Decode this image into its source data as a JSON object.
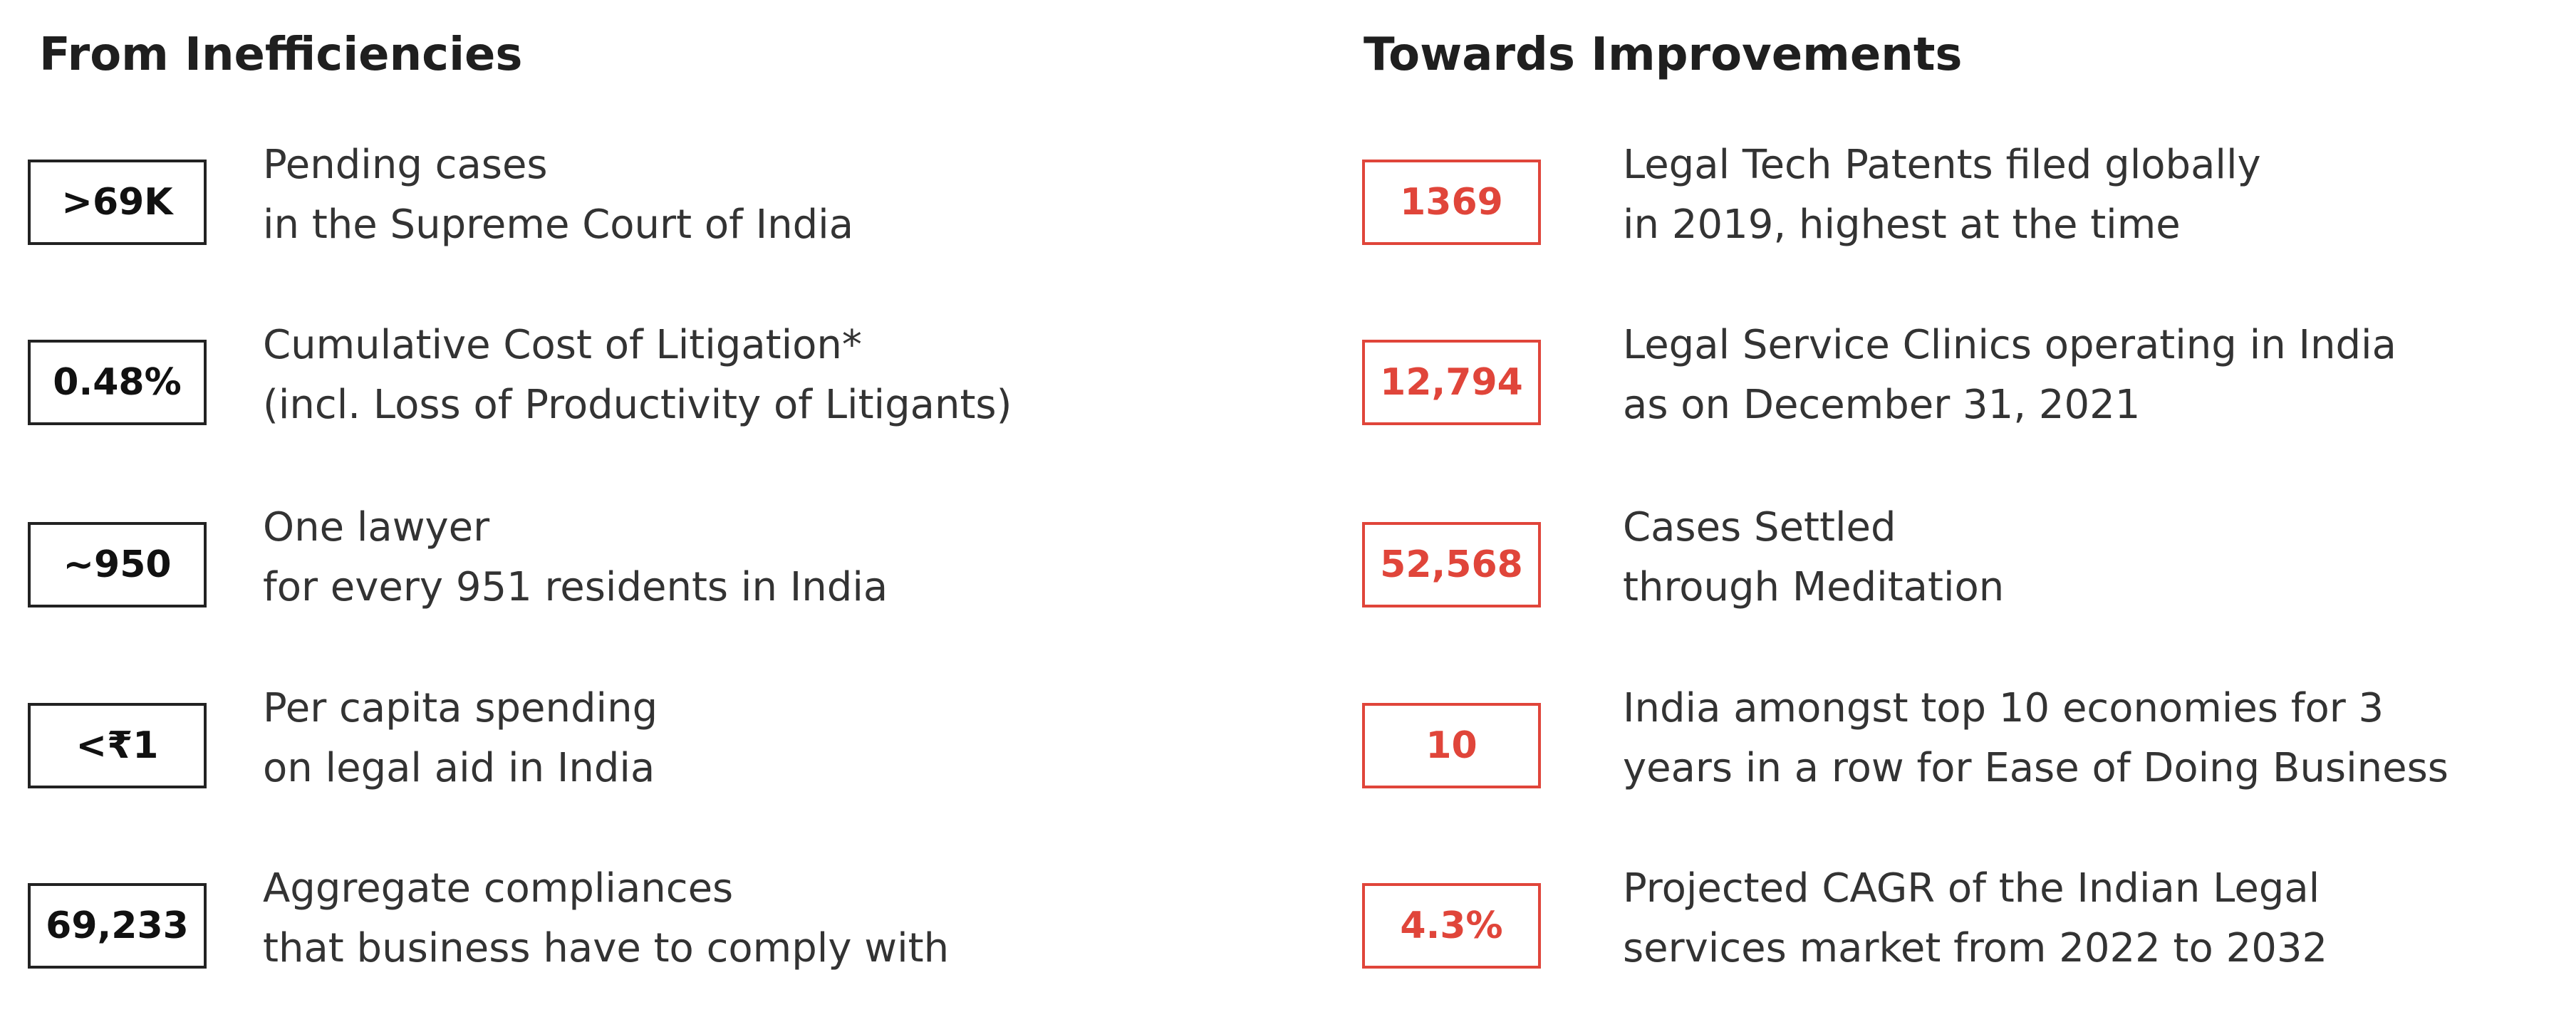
{
  "left": {
    "title": "From Inefficiencies",
    "items": [
      {
        "stat": ">69K",
        "lines": [
          "Pending cases",
          "in the Supreme Court of India"
        ]
      },
      {
        "stat": "0.48%",
        "lines": [
          "Cumulative Cost of Litigation*",
          "(incl. Loss of Productivity of Litigants)"
        ]
      },
      {
        "stat": "~950",
        "lines": [
          "One lawyer",
          "for every 951 residents in India"
        ]
      },
      {
        "stat": "<₹1",
        "lines": [
          "Per capita spending",
          "on legal aid in India"
        ]
      },
      {
        "stat": "69,233",
        "lines": [
          "Aggregate compliances",
          "that business have to comply with"
        ]
      }
    ]
  },
  "right": {
    "title": "Towards Improvements",
    "items": [
      {
        "stat": "1369",
        "lines": [
          "Legal Tech Patents filed globally",
          "in 2019, highest at the time"
        ]
      },
      {
        "stat": "12,794",
        "lines": [
          "Legal Service Clinics operating in India",
          "as on December 31, 2021"
        ]
      },
      {
        "stat": "52,568",
        "lines": [
          "Cases Settled",
          "through Meditation"
        ]
      },
      {
        "stat": "10",
        "lines": [
          "India amongst top 10 economies for 3",
          "years in a row for Ease of Doing Business"
        ]
      },
      {
        "stat": "4.3%",
        "lines": [
          "Projected CAGR of the Indian Legal",
          "services market from 2022 to 2032"
        ]
      }
    ]
  }
}
